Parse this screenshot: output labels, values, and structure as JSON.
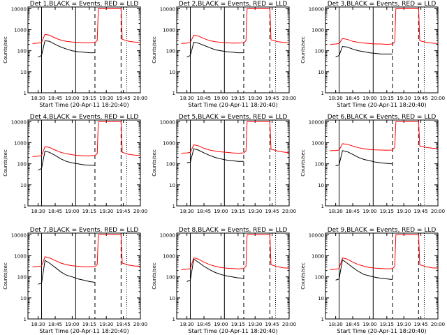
{
  "colors": {
    "events": "#000000",
    "lld": "#ff0000",
    "axis": "#000000",
    "background": "#ffffff"
  },
  "chart_data": [
    {
      "type": "line",
      "title": "Det 1,BLACK = Events, RED = LLD",
      "xlabel": "Start Time (20-Apr-11 18:20:40)",
      "ylabel": "Counts/sec",
      "yscale": "log",
      "ylim": [
        1,
        12000
      ],
      "y_ticks": [
        "1",
        "10",
        "100",
        "1000",
        "10000"
      ],
      "x_ticks": [
        "18:30",
        "18:45",
        "19:00",
        "19:15",
        "19:30",
        "19:45",
        "20:00"
      ],
      "x": [
        "18:25",
        "18:30",
        "18:33",
        "18:36",
        "18:40",
        "18:45",
        "18:50",
        "18:55",
        "19:00",
        "19:05",
        "19:10",
        "19:15",
        "19:20",
        "19:22",
        "19:23",
        "19:30",
        "19:37",
        "19:43",
        "19:44",
        "19:50",
        "19:55",
        "20:00"
      ],
      "series": [
        {
          "color": "#000000",
          "values": [
            null,
            50,
            60,
            300,
            280,
            200,
            150,
            120,
            100,
            90,
            85,
            80,
            80,
            null,
            null,
            null,
            null,
            null,
            null,
            null,
            null,
            null
          ]
        },
        {
          "color": "#ff0000",
          "values": [
            220,
            230,
            250,
            600,
            550,
            400,
            320,
            280,
            260,
            250,
            240,
            240,
            250,
            300,
            10000,
            10000,
            10000,
            10000,
            350,
            280,
            260,
            250
          ]
        }
      ],
      "vlines_solid": [
        "18:33",
        "19:03"
      ],
      "vlines_dashed": [
        "19:20",
        "19:43"
      ],
      "vlines_dotted": [
        "19:48"
      ]
    },
    {
      "type": "line",
      "title": "Det 2,BLACK = Events, RED = LLD",
      "xlabel": "Start Time (20-Apr-11 18:20:40)",
      "ylabel": "Counts/sec",
      "yscale": "log",
      "ylim": [
        1,
        12000
      ],
      "y_ticks": [
        "1",
        "10",
        "100",
        "1000",
        "10000"
      ],
      "x_ticks": [
        "18:30",
        "18:45",
        "19:00",
        "19:15",
        "19:30",
        "19:45",
        "20:00"
      ],
      "x": [
        "18:25",
        "18:30",
        "18:33",
        "18:36",
        "18:40",
        "18:45",
        "18:50",
        "18:55",
        "19:00",
        "19:05",
        "19:10",
        "19:15",
        "19:20",
        "19:22",
        "19:23",
        "19:30",
        "19:37",
        "19:43",
        "19:44",
        "19:50",
        "19:55",
        "20:00"
      ],
      "series": [
        {
          "color": "#000000",
          "values": [
            null,
            50,
            60,
            250,
            230,
            180,
            140,
            110,
            100,
            90,
            85,
            80,
            80,
            null,
            null,
            null,
            null,
            null,
            null,
            null,
            null,
            null
          ]
        },
        {
          "color": "#ff0000",
          "values": [
            220,
            230,
            250,
            550,
            500,
            380,
            300,
            270,
            250,
            240,
            230,
            230,
            240,
            300,
            10000,
            10000,
            10000,
            10000,
            330,
            270,
            250,
            240
          ]
        }
      ],
      "vlines_solid": [
        "18:33",
        "19:03"
      ],
      "vlines_dashed": [
        "19:20",
        "19:43"
      ],
      "vlines_dotted": [
        "19:48"
      ]
    },
    {
      "type": "line",
      "title": "Det 3,BLACK = Events, RED = LLD",
      "xlabel": "Start Time (20-Apr-11 18:20:40)",
      "ylabel": "Counts/sec",
      "yscale": "log",
      "ylim": [
        1,
        12000
      ],
      "y_ticks": [
        "1",
        "10",
        "100",
        "1000",
        "10000"
      ],
      "x_ticks": [
        "18:30",
        "18:45",
        "19:00",
        "19:15",
        "19:30",
        "19:45",
        "20:00"
      ],
      "x": [
        "18:25",
        "18:30",
        "18:33",
        "18:36",
        "18:40",
        "18:45",
        "18:50",
        "18:55",
        "19:00",
        "19:05",
        "19:10",
        "19:15",
        "19:20",
        "19:22",
        "19:23",
        "19:30",
        "19:37",
        "19:43",
        "19:44",
        "19:50",
        "19:55",
        "20:00"
      ],
      "series": [
        {
          "color": "#000000",
          "values": [
            null,
            50,
            60,
            160,
            150,
            120,
            100,
            90,
            80,
            75,
            70,
            70,
            70,
            null,
            null,
            null,
            null,
            null,
            null,
            null,
            null,
            null
          ]
        },
        {
          "color": "#ff0000",
          "values": [
            200,
            210,
            220,
            380,
            350,
            280,
            250,
            230,
            220,
            210,
            210,
            200,
            210,
            260,
            10000,
            10000,
            10000,
            10000,
            300,
            250,
            230,
            220
          ]
        }
      ],
      "vlines_solid": [
        "18:33",
        "19:03"
      ],
      "vlines_dashed": [
        "19:20",
        "19:43"
      ],
      "vlines_dotted": [
        "19:48"
      ]
    },
    {
      "type": "line",
      "title": "Det 4,BLACK = Events, RED = LLD",
      "xlabel": "",
      "ylabel": "Counts/sec",
      "yscale": "log",
      "ylim": [
        1,
        12000
      ],
      "y_ticks": [
        "1",
        "10",
        "100",
        "1000",
        "10000"
      ],
      "x_ticks": [
        "18:30",
        "18:45",
        "19:00",
        "19:15",
        "19:30",
        "19:45",
        "20:00"
      ],
      "x": [
        "18:25",
        "18:30",
        "18:33",
        "18:36",
        "18:40",
        "18:45",
        "18:50",
        "18:55",
        "19:00",
        "19:05",
        "19:10",
        "19:15",
        "19:20",
        "19:22",
        "19:23",
        "19:30",
        "19:37",
        "19:43",
        "19:44",
        "19:50",
        "19:55",
        "20:00"
      ],
      "series": [
        {
          "color": "#000000",
          "values": [
            null,
            50,
            60,
            400,
            350,
            250,
            170,
            130,
            110,
            100,
            90,
            85,
            85,
            null,
            null,
            null,
            null,
            null,
            null,
            null,
            null,
            null
          ]
        },
        {
          "color": "#ff0000",
          "values": [
            220,
            230,
            250,
            650,
            600,
            450,
            350,
            300,
            270,
            250,
            240,
            240,
            250,
            300,
            10000,
            10000,
            10000,
            10000,
            350,
            280,
            260,
            250
          ]
        }
      ],
      "vlines_solid": [
        "18:33",
        "19:03"
      ],
      "vlines_dashed": [
        "19:20",
        "19:43"
      ],
      "vlines_dotted": [
        "19:48"
      ]
    },
    {
      "type": "line",
      "title": "Det 5,BLACK = Events, RED = LLD",
      "xlabel": "",
      "ylabel": "Counts/sec",
      "yscale": "log",
      "ylim": [
        1,
        12000
      ],
      "y_ticks": [
        "1",
        "10",
        "100",
        "1000",
        "10000"
      ],
      "x_ticks": [
        "18:30",
        "18:45",
        "19:00",
        "19:15",
        "19:30",
        "19:45",
        "20:00"
      ],
      "x": [
        "18:25",
        "18:30",
        "18:33",
        "18:36",
        "18:40",
        "18:45",
        "18:50",
        "18:55",
        "19:00",
        "19:05",
        "19:10",
        "19:15",
        "19:20",
        "19:22",
        "19:23",
        "19:30",
        "19:37",
        "19:43",
        "19:44",
        "19:50",
        "19:55",
        "20:00"
      ],
      "series": [
        {
          "color": "#000000",
          "values": [
            null,
            110,
            120,
            520,
            450,
            330,
            250,
            200,
            170,
            150,
            140,
            130,
            130,
            null,
            null,
            null,
            null,
            null,
            null,
            null,
            null,
            null
          ]
        },
        {
          "color": "#ff0000",
          "values": [
            320,
            330,
            350,
            800,
            720,
            550,
            450,
            400,
            370,
            350,
            330,
            320,
            330,
            400,
            10000,
            10000,
            10000,
            10000,
            500,
            400,
            360,
            340
          ]
        }
      ],
      "vlines_solid": [
        "18:33",
        "19:03"
      ],
      "vlines_dashed": [
        "19:20",
        "19:43"
      ],
      "vlines_dotted": [
        "19:48"
      ]
    },
    {
      "type": "line",
      "title": "Det 6,BLACK = Events, RED = LLD",
      "xlabel": "",
      "ylabel": "Counts/sec",
      "yscale": "log",
      "ylim": [
        1,
        12000
      ],
      "y_ticks": [
        "1",
        "10",
        "100",
        "1000",
        "10000"
      ],
      "x_ticks": [
        "18:30",
        "18:45",
        "19:00",
        "19:15",
        "19:30",
        "19:45",
        "20:00"
      ],
      "x": [
        "18:25",
        "18:30",
        "18:33",
        "18:36",
        "18:40",
        "18:45",
        "18:50",
        "18:55",
        "19:00",
        "19:05",
        "19:10",
        "19:15",
        "19:20",
        "19:22",
        "19:23",
        "19:30",
        "19:37",
        "19:43",
        "19:44",
        "19:50",
        "19:55",
        "20:00"
      ],
      "series": [
        {
          "color": "#000000",
          "values": [
            null,
            80,
            90,
            420,
            380,
            280,
            200,
            160,
            140,
            120,
            110,
            105,
            100,
            null,
            null,
            null,
            null,
            null,
            null,
            null,
            null,
            null
          ]
        },
        {
          "color": "#ff0000",
          "values": [
            420,
            430,
            450,
            900,
            850,
            700,
            580,
            520,
            480,
            460,
            450,
            440,
            450,
            600,
            10000,
            10000,
            10000,
            10000,
            700,
            600,
            550,
            530
          ]
        }
      ],
      "vlines_solid": [
        "18:33",
        "19:03"
      ],
      "vlines_dashed": [
        "19:20",
        "19:43"
      ],
      "vlines_dotted": [
        "19:48"
      ]
    },
    {
      "type": "line",
      "title": "Det 7,BLACK = Events, RED = LLD",
      "xlabel": "Start Time (20-Apr-11 18:20:40)",
      "ylabel": "Counts/sec",
      "yscale": "log",
      "ylim": [
        1,
        12000
      ],
      "y_ticks": [
        "1",
        "10",
        "100",
        "1000",
        "10000"
      ],
      "x_ticks": [
        "18:30",
        "18:45",
        "19:00",
        "19:15",
        "19:30",
        "19:45",
        "20:00"
      ],
      "x": [
        "18:25",
        "18:30",
        "18:33",
        "18:36",
        "18:40",
        "18:45",
        "18:50",
        "18:55",
        "19:00",
        "19:05",
        "19:10",
        "19:15",
        "19:20",
        "19:22",
        "19:23",
        "19:30",
        "19:37",
        "19:43",
        "19:44",
        "19:50",
        "19:55",
        "20:00"
      ],
      "series": [
        {
          "color": "#000000",
          "values": [
            null,
            45,
            50,
            600,
            450,
            280,
            170,
            120,
            100,
            80,
            70,
            60,
            55,
            null,
            null,
            null,
            null,
            null,
            null,
            null,
            null,
            null
          ]
        },
        {
          "color": "#ff0000",
          "values": [
            300,
            310,
            330,
            900,
            800,
            600,
            450,
            380,
            340,
            320,
            300,
            300,
            310,
            380,
            10000,
            10000,
            10000,
            10000,
            450,
            360,
            330,
            320
          ]
        }
      ],
      "vlines_solid": [
        "18:33",
        "19:03"
      ],
      "vlines_dashed": [
        "19:20",
        "19:43"
      ],
      "vlines_dotted": [
        "19:48"
      ]
    },
    {
      "type": "line",
      "title": "Det 8,BLACK = Events, RED = LLD",
      "xlabel": "Start Time (20-Apr-11 18:20:40)",
      "ylabel": "Counts/sec",
      "yscale": "log",
      "ylim": [
        1,
        12000
      ],
      "y_ticks": [
        "1",
        "10",
        "100",
        "1000",
        "10000"
      ],
      "x_ticks": [
        "18:30",
        "18:45",
        "19:00",
        "19:15",
        "19:30",
        "19:45",
        "20:00"
      ],
      "x": [
        "18:25",
        "18:30",
        "18:33",
        "18:36",
        "18:40",
        "18:45",
        "18:50",
        "18:55",
        "19:00",
        "19:05",
        "19:10",
        "19:15",
        "19:20",
        "19:22",
        "19:23",
        "19:30",
        "19:37",
        "19:43",
        "19:44",
        "19:50",
        "19:55",
        "20:00"
      ],
      "series": [
        {
          "color": "#000000",
          "values": [
            null,
            60,
            70,
            700,
            500,
            320,
            220,
            160,
            130,
            110,
            100,
            90,
            85,
            null,
            null,
            null,
            null,
            null,
            null,
            null,
            null,
            null
          ]
        },
        {
          "color": "#ff0000",
          "values": [
            220,
            230,
            250,
            800,
            700,
            500,
            380,
            320,
            280,
            260,
            250,
            240,
            250,
            320,
            10000,
            10000,
            10000,
            10000,
            380,
            300,
            270,
            260
          ]
        }
      ],
      "vlines_solid": [
        "18:33",
        "19:03"
      ],
      "vlines_dashed": [
        "19:20",
        "19:43"
      ],
      "vlines_dotted": [
        "19:48"
      ]
    },
    {
      "type": "line",
      "title": "Det 9,BLACK = Events, RED = LLD",
      "xlabel": "Start Time (20-Apr-11 18:20:40)",
      "ylabel": "Counts/sec",
      "yscale": "log",
      "ylim": [
        1,
        12000
      ],
      "y_ticks": [
        "1",
        "10",
        "100",
        "1000",
        "10000"
      ],
      "x_ticks": [
        "18:30",
        "18:45",
        "19:00",
        "19:15",
        "19:30",
        "19:45",
        "20:00"
      ],
      "x": [
        "18:25",
        "18:30",
        "18:33",
        "18:36",
        "18:40",
        "18:45",
        "18:50",
        "18:55",
        "19:00",
        "19:05",
        "19:10",
        "19:15",
        "19:20",
        "19:22",
        "19:23",
        "19:30",
        "19:37",
        "19:43",
        "19:44",
        "19:50",
        "19:55",
        "20:00"
      ],
      "series": [
        {
          "color": "#000000",
          "values": [
            null,
            70,
            80,
            650,
            450,
            280,
            180,
            130,
            110,
            95,
            85,
            80,
            75,
            null,
            null,
            null,
            null,
            null,
            null,
            null,
            null,
            null
          ]
        },
        {
          "color": "#ff0000",
          "values": [
            220,
            230,
            250,
            800,
            700,
            500,
            380,
            320,
            280,
            260,
            250,
            240,
            250,
            320,
            10000,
            10000,
            10000,
            10000,
            380,
            300,
            270,
            260
          ]
        }
      ],
      "vlines_solid": [
        "18:33",
        "19:03"
      ],
      "vlines_dashed": [
        "19:20",
        "19:43"
      ],
      "vlines_dotted": [
        "19:48"
      ]
    }
  ]
}
